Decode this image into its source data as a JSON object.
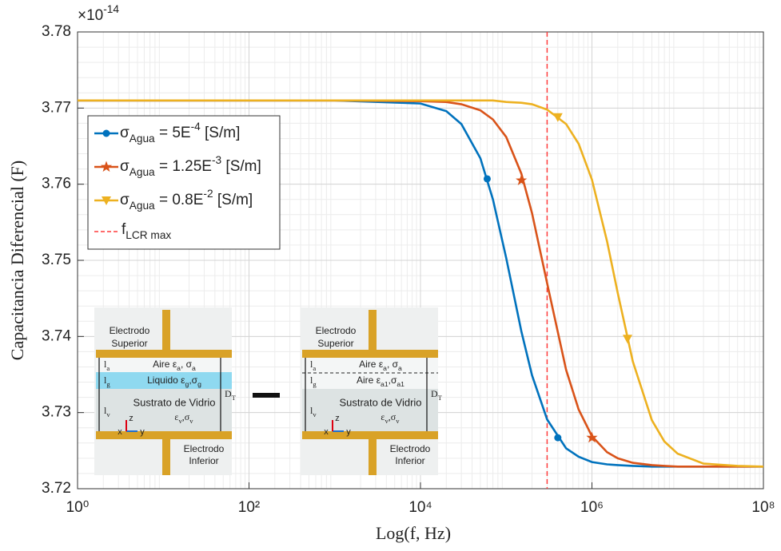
{
  "chart_data": {
    "type": "line",
    "xlabel": "Log(f, Hz)",
    "ylabel": "Capacitancia Diferencial (F)",
    "y_exponent": "×10-14",
    "log_x": true,
    "grid": true,
    "minor_grid": true,
    "xlim": [
      1,
      100000000
    ],
    "xticks": [
      {
        "value": 1,
        "label": "10⁰"
      },
      {
        "value": 100,
        "label": "10²"
      },
      {
        "value": 10000,
        "label": "10⁴"
      },
      {
        "value": 1000000,
        "label": "10⁶"
      },
      {
        "value": 100000000,
        "label": "10⁸"
      }
    ],
    "ylim": [
      3.72,
      3.78
    ],
    "yticks": [
      3.72,
      3.73,
      3.74,
      3.75,
      3.76,
      3.77,
      3.78
    ],
    "legend": "upper left",
    "x": [
      1,
      10,
      100,
      1000,
      10000,
      20000,
      30000,
      50000,
      70000,
      100000,
      150000,
      200000,
      300000,
      500000,
      700000,
      1000000,
      1500000,
      2000000,
      3000000,
      5000000,
      7000000,
      10000000,
      20000000,
      50000000,
      100000000
    ],
    "series": [
      {
        "name": "σAgua = 5E-4 [S/m]",
        "color": "#0072BD",
        "marker": "circle",
        "values": [
          3.771,
          3.771,
          3.771,
          3.771,
          3.7706,
          3.7696,
          3.7679,
          3.7634,
          3.758,
          3.7503,
          3.7407,
          3.7349,
          3.7291,
          3.7253,
          3.7242,
          3.7235,
          3.7232,
          3.7231,
          3.723,
          3.7229,
          3.7229,
          3.7229,
          3.7229,
          3.7229,
          3.7229
        ],
        "markers": {
          "x": [
            60000,
            400000
          ],
          "values": [
            3.7607,
            3.7267
          ]
        }
      },
      {
        "name": "σAgua = 1.25E-3 [S/m]",
        "color": "#D95319",
        "marker": "star",
        "values": [
          3.771,
          3.771,
          3.771,
          3.771,
          3.7709,
          3.7708,
          3.7705,
          3.7697,
          3.7685,
          3.7662,
          3.7614,
          3.7562,
          3.747,
          3.7356,
          3.7304,
          3.7269,
          3.7248,
          3.724,
          3.7234,
          3.7231,
          3.723,
          3.7229,
          3.7229,
          3.7229,
          3.7229
        ],
        "markers": {
          "x": [
            150000,
            1000000
          ],
          "values": [
            3.7605,
            3.7267
          ]
        }
      },
      {
        "name": "σAgua = 0.8E-2 [S/m]",
        "color": "#EDB120",
        "marker": "triangle-down",
        "values": [
          3.771,
          3.771,
          3.771,
          3.771,
          3.771,
          3.771,
          3.771,
          3.771,
          3.771,
          3.7708,
          3.7707,
          3.7705,
          3.7698,
          3.7679,
          3.7653,
          3.7606,
          3.7525,
          3.7457,
          3.7367,
          3.729,
          3.7262,
          3.7246,
          3.7233,
          3.723,
          3.7229
        ],
        "markers": {
          "x": [
            400000,
            2600000
          ],
          "values": [
            3.7688,
            3.7397
          ]
        }
      }
    ],
    "vline": {
      "name": "fLCR max",
      "x": 300000,
      "color": "#FF3B3B"
    },
    "insets": [
      {
        "top": [
          "Electrodo",
          "Superior"
        ],
        "layers": [
          "Aire εa, σa",
          "Liquido εg,σg"
        ],
        "substrate": [
          "Sustrato de Vidrio",
          "εv,σv"
        ],
        "dims": [
          "la",
          "lg",
          "lv",
          "DT"
        ],
        "bottom": [
          "Electrodo",
          "Inferior"
        ],
        "axes": [
          "x",
          "y",
          "z"
        ]
      },
      {
        "top": [
          "Electrodo",
          "Superior"
        ],
        "layers": [
          "Aire εa, σa",
          "Aire εa1,σa1"
        ],
        "substrate": [
          "Sustrato de Vidrio",
          "εv,σv"
        ],
        "dims": [
          "la",
          "lg",
          "lv",
          "DT"
        ],
        "bottom": [
          "Electrodo",
          "Inferior"
        ],
        "axes": [
          "x",
          "y",
          "z"
        ]
      }
    ]
  }
}
